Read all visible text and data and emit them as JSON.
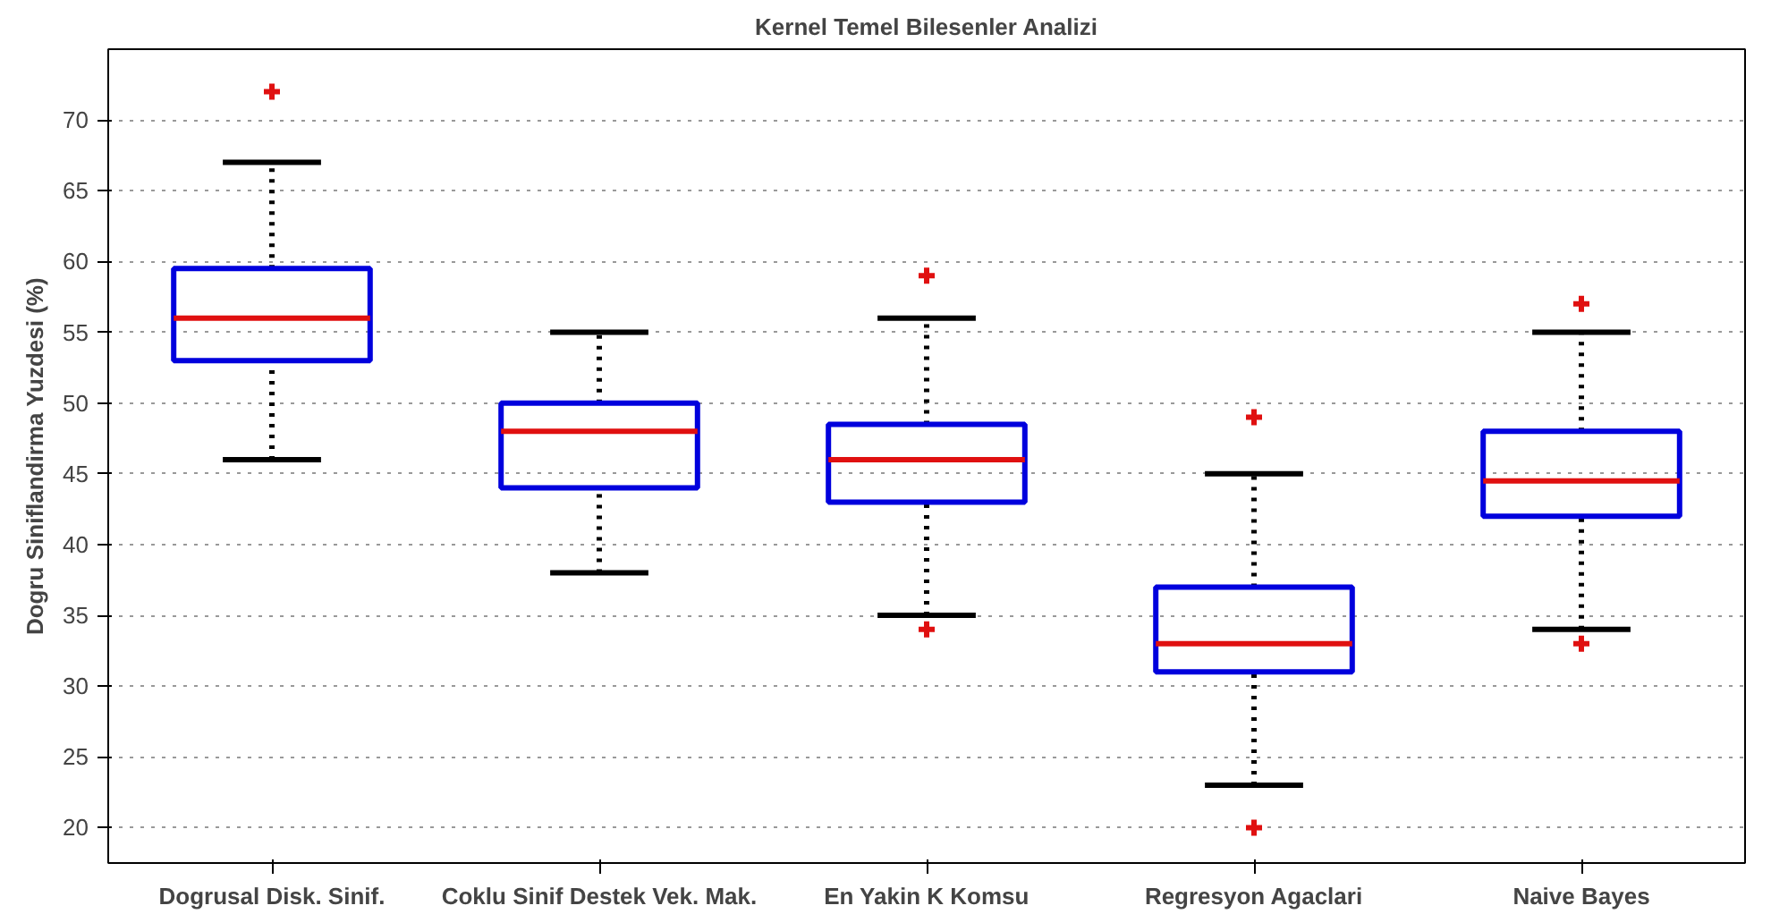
{
  "chart_data": {
    "type": "box",
    "title": "Kernel Temel Bilesenler Analizi",
    "ylabel": "Dogru Siniflandirma Yuzdesi (%)",
    "categories": [
      "Dogrusal Disk. Sinif.",
      "Coklu Sinif Destek Vek. Mak.",
      "En Yakin K Komsu",
      "Regresyon Agaclari",
      "Naive Bayes"
    ],
    "series": [
      {
        "color": "#0000dd",
        "boxes": [
          {
            "low": 46,
            "q1": 53,
            "median": 56,
            "q3": 59.5,
            "high": 67,
            "outliers": [
              72
            ]
          },
          {
            "low": 38,
            "q1": 44,
            "median": 48,
            "q3": 50,
            "high": 55
          },
          {
            "low": 35,
            "q1": 43,
            "median": 46,
            "q3": 48.5,
            "high": 56,
            "outliers": [
              59,
              34
            ]
          },
          {
            "low": 23,
            "q1": 31,
            "median": 33,
            "q3": 37,
            "high": 45,
            "outliers": [
              49,
              20
            ]
          },
          {
            "low": 34,
            "q1": 42,
            "median": 44.5,
            "q3": 48,
            "high": 55,
            "outliers": [
              57,
              33
            ]
          }
        ]
      }
    ],
    "ylim": [
      17.5,
      75
    ],
    "yticks": [
      20,
      25,
      30,
      35,
      40,
      45,
      50,
      55,
      60,
      65,
      70
    ],
    "grid": "y",
    "line_style": "dotted",
    "marker": "cross"
  }
}
